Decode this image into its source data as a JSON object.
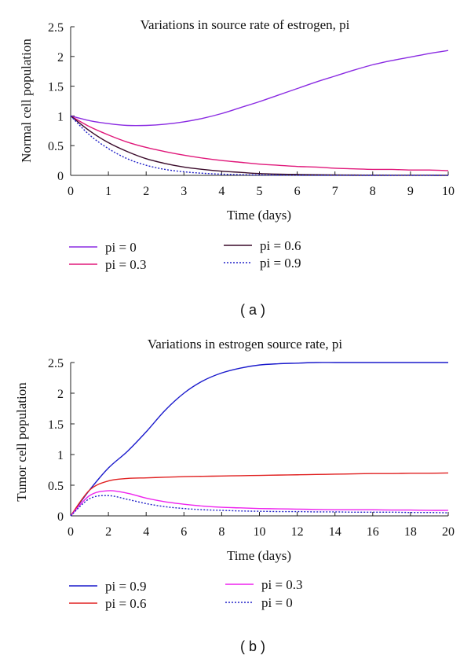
{
  "chart_data": [
    {
      "type": "line",
      "title": "Variations in source rate of estrogen, pi",
      "xlabel": "Time (days)",
      "ylabel": "Normal cell population",
      "xlim": [
        0,
        10
      ],
      "ylim": [
        0,
        2.5
      ],
      "xticks": [
        "0",
        "1",
        "2",
        "3",
        "4",
        "5",
        "6",
        "7",
        "8",
        "9",
        "10"
      ],
      "yticks": [
        "0",
        "0.5",
        "1",
        "1.5",
        "2",
        "2.5"
      ],
      "x": [
        0,
        0.5,
        1,
        1.5,
        2,
        2.5,
        3,
        3.5,
        4,
        4.5,
        5,
        5.5,
        6,
        6.5,
        7,
        7.5,
        8,
        8.5,
        9,
        9.5,
        10
      ],
      "series": [
        {
          "name": "pi = 0",
          "color": "#8a2be2",
          "style": "solid",
          "values": [
            1.0,
            0.92,
            0.87,
            0.84,
            0.84,
            0.86,
            0.9,
            0.96,
            1.04,
            1.14,
            1.24,
            1.35,
            1.46,
            1.57,
            1.67,
            1.77,
            1.86,
            1.93,
            1.99,
            2.05,
            2.1
          ]
        },
        {
          "name": "pi = 0.3",
          "color": "#e0187a",
          "style": "solid",
          "values": [
            1.0,
            0.82,
            0.68,
            0.56,
            0.47,
            0.4,
            0.34,
            0.29,
            0.25,
            0.22,
            0.19,
            0.17,
            0.15,
            0.14,
            0.12,
            0.11,
            0.1,
            0.1,
            0.09,
            0.09,
            0.08
          ]
        },
        {
          "name": "pi = 0.6",
          "color": "#3a0a2a",
          "style": "solid",
          "values": [
            1.0,
            0.75,
            0.55,
            0.4,
            0.28,
            0.2,
            0.14,
            0.1,
            0.07,
            0.05,
            0.03,
            0.02,
            0.015,
            0.01,
            0.008,
            0.005,
            0.004,
            0.003,
            0.002,
            0.002,
            0.001
          ]
        },
        {
          "name": "pi = 0.9",
          "color": "#2020c8",
          "style": "dotted",
          "values": [
            1.0,
            0.68,
            0.45,
            0.28,
            0.17,
            0.1,
            0.06,
            0.035,
            0.02,
            0.012,
            0.007,
            0.004,
            0.002,
            0.001,
            0.001,
            0,
            0,
            0,
            0,
            0,
            0
          ]
        }
      ],
      "legend": "below",
      "grid": false,
      "caption": "( a )"
    },
    {
      "type": "line",
      "title": "Variations in estrogen source rate, pi",
      "xlabel": "Time (days)",
      "ylabel": "Tumor cell population",
      "xlim": [
        0,
        20
      ],
      "ylim": [
        0,
        2.5
      ],
      "xticks": [
        "0",
        "2",
        "4",
        "6",
        "8",
        "10",
        "12",
        "14",
        "16",
        "18",
        "20"
      ],
      "yticks": [
        "0",
        "0.5",
        "1",
        "1.5",
        "2",
        "2.5"
      ],
      "x": [
        0,
        1,
        2,
        3,
        4,
        5,
        6,
        7,
        8,
        9,
        10,
        11,
        12,
        13,
        14,
        15,
        16,
        17,
        18,
        19,
        20
      ],
      "series": [
        {
          "name": "pi = 0.9",
          "color": "#1a1acc",
          "style": "solid",
          "values": [
            0,
            0.42,
            0.78,
            1.05,
            1.37,
            1.72,
            2.0,
            2.2,
            2.33,
            2.41,
            2.46,
            2.48,
            2.49,
            2.5,
            2.5,
            2.5,
            2.5,
            2.5,
            2.5,
            2.5,
            2.5
          ]
        },
        {
          "name": "pi = 0.6",
          "color": "#e02020",
          "style": "solid",
          "values": [
            0,
            0.42,
            0.57,
            0.61,
            0.62,
            0.63,
            0.64,
            0.645,
            0.65,
            0.655,
            0.66,
            0.665,
            0.67,
            0.675,
            0.68,
            0.685,
            0.69,
            0.69,
            0.695,
            0.695,
            0.7
          ]
        },
        {
          "name": "pi = 0.3",
          "color": "#ee22ee",
          "style": "solid",
          "values": [
            0,
            0.33,
            0.41,
            0.37,
            0.29,
            0.23,
            0.19,
            0.16,
            0.14,
            0.13,
            0.12,
            0.115,
            0.11,
            0.105,
            0.1,
            0.1,
            0.1,
            0.095,
            0.095,
            0.09,
            0.09
          ]
        },
        {
          "name": "pi = 0",
          "color": "#2020c8",
          "style": "dotted",
          "values": [
            0,
            0.28,
            0.33,
            0.27,
            0.2,
            0.15,
            0.12,
            0.1,
            0.09,
            0.08,
            0.075,
            0.07,
            0.07,
            0.065,
            0.065,
            0.06,
            0.06,
            0.06,
            0.055,
            0.055,
            0.05
          ]
        }
      ],
      "legend": "below",
      "grid": false,
      "caption": "( b )"
    }
  ]
}
